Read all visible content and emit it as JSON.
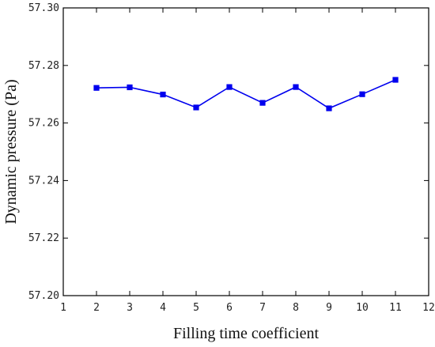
{
  "chart_data": {
    "type": "line",
    "xlabel": "Filling time coefficient",
    "ylabel": "Dynamic pressure (Pa)",
    "xlim": [
      1,
      12
    ],
    "ylim": [
      57.2,
      57.3
    ],
    "xticks": [
      1,
      2,
      3,
      4,
      5,
      6,
      7,
      8,
      9,
      10,
      11,
      12
    ],
    "xtick_labels": [
      "1",
      "2",
      "3",
      "4",
      "5",
      "6",
      "7",
      "8",
      "9",
      "10",
      "11",
      "12"
    ],
    "yticks": [
      57.2,
      57.22,
      57.24,
      57.26,
      57.28,
      57.3
    ],
    "ytick_labels": [
      "57.20",
      "57.22",
      "57.24",
      "57.26",
      "57.28",
      "57.30"
    ],
    "grid": false,
    "series": [
      {
        "color": "#0000ee",
        "marker": "square",
        "x": [
          2,
          3,
          4,
          5,
          6,
          7,
          8,
          9,
          10,
          11
        ],
        "y": [
          57.2722,
          57.2724,
          57.2699,
          57.2654,
          57.2725,
          57.267,
          57.2725,
          57.2651,
          57.27,
          57.275
        ]
      }
    ]
  }
}
